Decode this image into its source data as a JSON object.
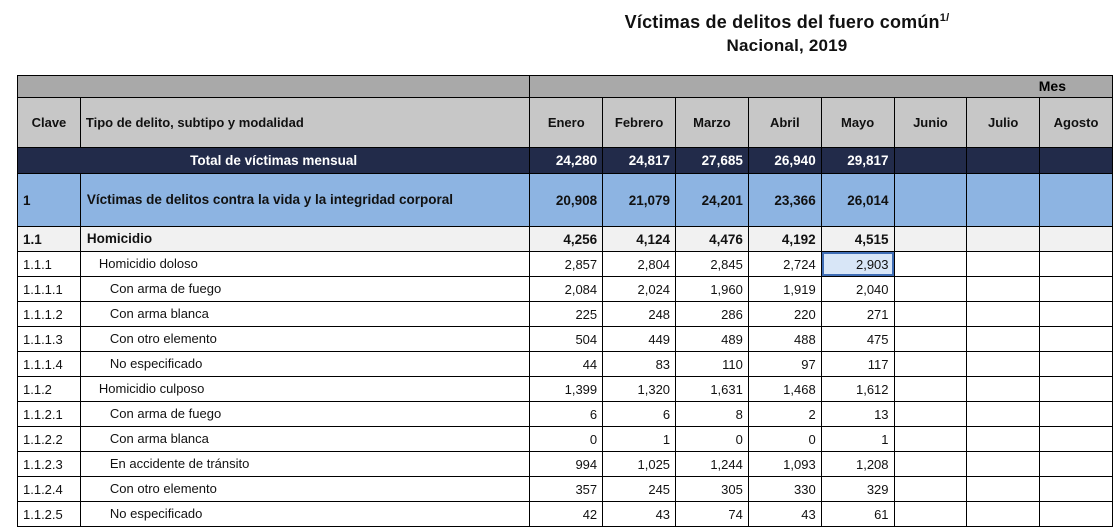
{
  "title": {
    "main": "Víctimas de delitos del fuero común",
    "superscript": "1/",
    "subtitle": "Nacional, 2019"
  },
  "table": {
    "mes_band_label": "Mes",
    "headers": {
      "clave": "Clave",
      "tipo": "Tipo de delito, subtipo y modalidad",
      "months": [
        "Enero",
        "Febrero",
        "Marzo",
        "Abril",
        "Mayo",
        "Junio",
        "Julio",
        "Agosto"
      ]
    },
    "total_row": {
      "label": "Total de víctimas mensual",
      "values": [
        "24,280",
        "24,817",
        "27,685",
        "26,940",
        "29,817",
        "",
        "",
        ""
      ]
    },
    "rows": [
      {
        "clave": "1",
        "label": "Víctimas de delitos contra la vida y la integridad corporal",
        "style": "section-blue",
        "indent": 0,
        "values": [
          "20,908",
          "21,079",
          "24,201",
          "23,366",
          "26,014",
          "",
          "",
          ""
        ]
      },
      {
        "clave": "1.1",
        "label": "Homicidio",
        "style": "subtotal",
        "indent": 0,
        "values": [
          "4,256",
          "4,124",
          "4,476",
          "4,192",
          "4,515",
          "",
          "",
          ""
        ]
      },
      {
        "clave": "1.1.1",
        "label": "Homicidio doloso",
        "style": "normal",
        "indent": 1,
        "values": [
          "2,857",
          "2,804",
          "2,845",
          "2,724",
          "2,903",
          "",
          "",
          ""
        ],
        "selected_col": 4
      },
      {
        "clave": "1.1.1.1",
        "label": "Con arma de fuego",
        "style": "normal",
        "indent": 2,
        "values": [
          "2,084",
          "2,024",
          "1,960",
          "1,919",
          "2,040",
          "",
          "",
          ""
        ]
      },
      {
        "clave": "1.1.1.2",
        "label": "Con arma blanca",
        "style": "normal",
        "indent": 2,
        "values": [
          "225",
          "248",
          "286",
          "220",
          "271",
          "",
          "",
          ""
        ]
      },
      {
        "clave": "1.1.1.3",
        "label": "Con otro elemento",
        "style": "normal",
        "indent": 2,
        "values": [
          "504",
          "449",
          "489",
          "488",
          "475",
          "",
          "",
          ""
        ]
      },
      {
        "clave": "1.1.1.4",
        "label": "No especificado",
        "style": "normal",
        "indent": 2,
        "values": [
          "44",
          "83",
          "110",
          "97",
          "117",
          "",
          "",
          ""
        ]
      },
      {
        "clave": "1.1.2",
        "label": "Homicidio culposo",
        "style": "normal",
        "indent": 1,
        "values": [
          "1,399",
          "1,320",
          "1,631",
          "1,468",
          "1,612",
          "",
          "",
          ""
        ]
      },
      {
        "clave": "1.1.2.1",
        "label": "Con arma de fuego",
        "style": "normal",
        "indent": 2,
        "values": [
          "6",
          "6",
          "8",
          "2",
          "13",
          "",
          "",
          ""
        ]
      },
      {
        "clave": "1.1.2.2",
        "label": "Con arma blanca",
        "style": "normal",
        "indent": 2,
        "values": [
          "0",
          "1",
          "0",
          "0",
          "1",
          "",
          "",
          ""
        ]
      },
      {
        "clave": "1.1.2.3",
        "label": "En accidente de tránsito",
        "style": "normal",
        "indent": 2,
        "values": [
          "994",
          "1,025",
          "1,244",
          "1,093",
          "1,208",
          "",
          "",
          ""
        ]
      },
      {
        "clave": "1.1.2.4",
        "label": "Con otro elemento",
        "style": "normal",
        "indent": 2,
        "values": [
          "357",
          "245",
          "305",
          "330",
          "329",
          "",
          "",
          ""
        ]
      },
      {
        "clave": "1.1.2.5",
        "label": "No especificado",
        "style": "normal",
        "indent": 2,
        "values": [
          "42",
          "43",
          "74",
          "43",
          "61",
          "",
          "",
          ""
        ]
      }
    ],
    "selected_cell": {
      "row_clave": "1.1.1",
      "month": "Mayo",
      "value": "2,903"
    }
  },
  "colors": {
    "total_row_bg": "#222b4a",
    "section_row_bg": "#8db4e2",
    "subtotal_row_bg": "#f1f1f1",
    "band_bg": "#a9a9a9",
    "header_bg": "#c7c7c7",
    "selected_cell_bg": "#d8e6f7",
    "selected_cell_border": "#3f6db5",
    "grid_border": "#000000"
  }
}
